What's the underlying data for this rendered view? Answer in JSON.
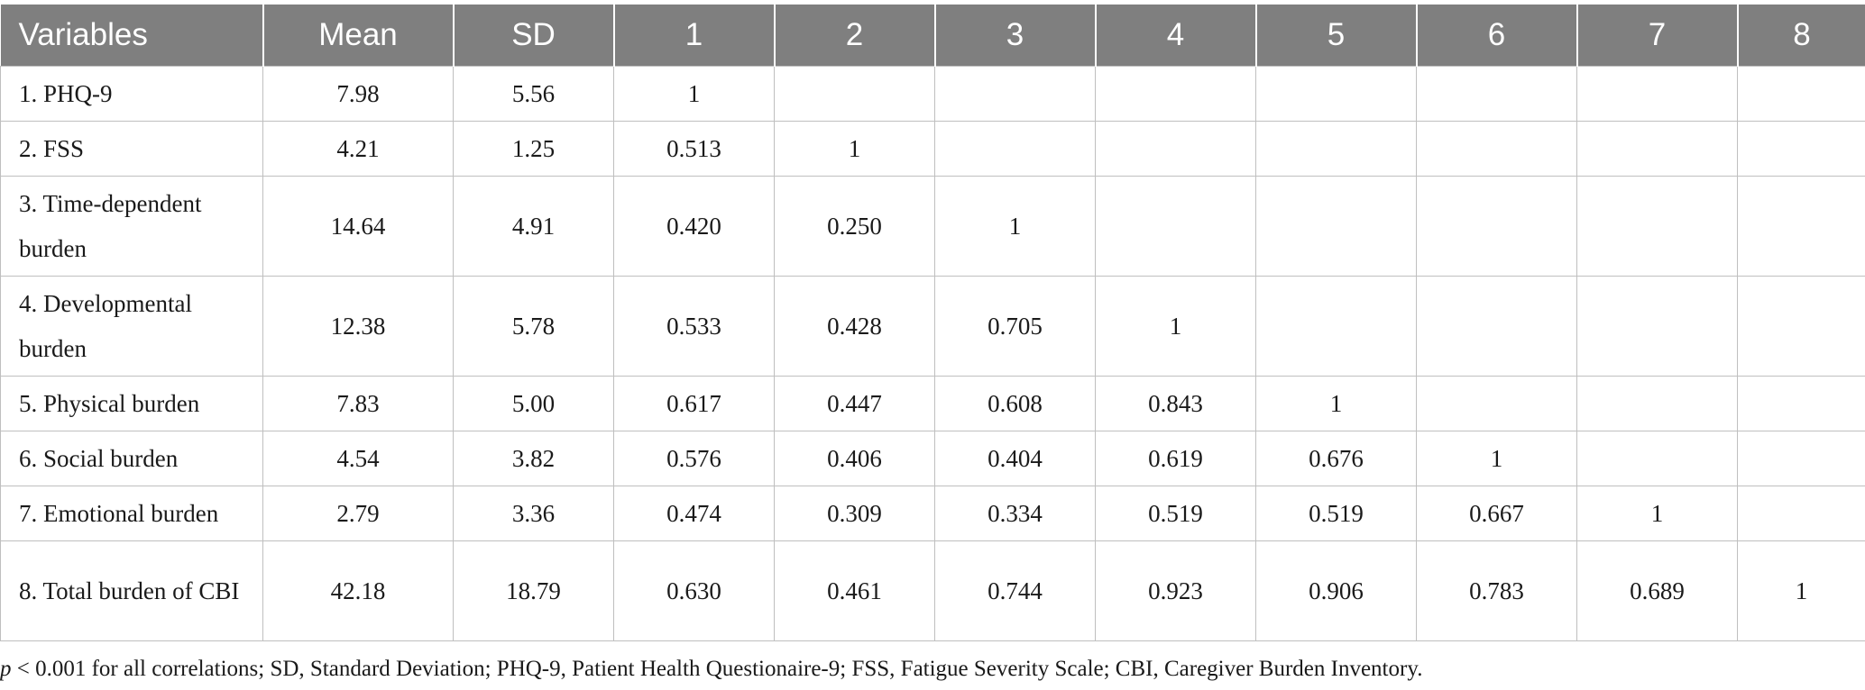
{
  "table": {
    "headers": [
      "Variables",
      "Mean",
      "SD",
      "1",
      "2",
      "3",
      "4",
      "5",
      "6",
      "7",
      "8"
    ],
    "rows": [
      {
        "variable": "1. PHQ-9",
        "mean": "7.98",
        "sd": "5.56",
        "c": [
          "1",
          "",
          "",
          "",
          "",
          "",
          "",
          ""
        ],
        "lines": 1
      },
      {
        "variable": "2. FSS",
        "mean": "4.21",
        "sd": "1.25",
        "c": [
          "0.513",
          "1",
          "",
          "",
          "",
          "",
          "",
          ""
        ],
        "lines": 1
      },
      {
        "variable": "3. Time-dependent burden",
        "mean": "14.64",
        "sd": "4.91",
        "c": [
          "0.420",
          "0.250",
          "1",
          "",
          "",
          "",
          "",
          ""
        ],
        "lines": 2
      },
      {
        "variable": "4. Developmental burden",
        "mean": "12.38",
        "sd": "5.78",
        "c": [
          "0.533",
          "0.428",
          "0.705",
          "1",
          "",
          "",
          "",
          ""
        ],
        "lines": 2
      },
      {
        "variable": "5. Physical burden",
        "mean": "7.83",
        "sd": "5.00",
        "c": [
          "0.617",
          "0.447",
          "0.608",
          "0.843",
          "1",
          "",
          "",
          ""
        ],
        "lines": 1
      },
      {
        "variable": "6. Social burden",
        "mean": "4.54",
        "sd": "3.82",
        "c": [
          "0.576",
          "0.406",
          "0.404",
          "0.619",
          "0.676",
          "1",
          "",
          ""
        ],
        "lines": 1
      },
      {
        "variable": "7. Emotional burden",
        "mean": "2.79",
        "sd": "3.36",
        "c": [
          "0.474",
          "0.309",
          "0.334",
          "0.519",
          "0.519",
          "0.667",
          "1",
          ""
        ],
        "lines": 1
      },
      {
        "variable": "8. Total burden of CBI",
        "mean": "42.18",
        "sd": "18.79",
        "c": [
          "0.630",
          "0.461",
          "0.744",
          "0.923",
          "0.906",
          "0.783",
          "0.689",
          "1"
        ],
        "lines": 2
      }
    ]
  },
  "footnote": {
    "p_symbol": "p",
    "text": " < 0.001 for all correlations; SD, Standard Deviation; PHQ-9, Patient Health Questionaire-9; FSS, Fatigue Severity Scale; CBI, Caregiver Burden Inventory."
  }
}
